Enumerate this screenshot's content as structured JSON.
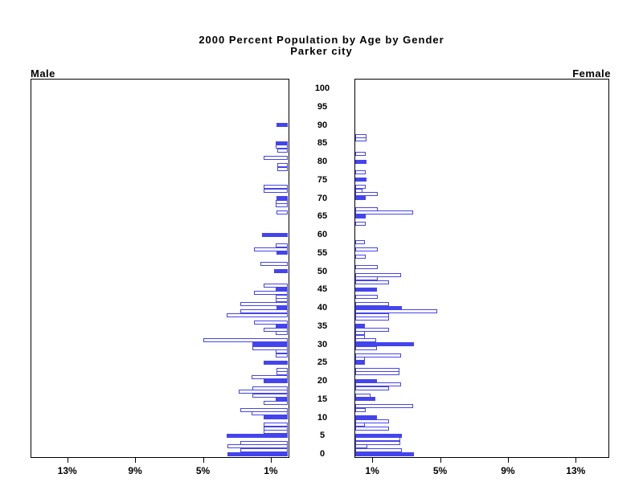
{
  "chart_data": {
    "type": "bar",
    "variant": "population-pyramid",
    "title": "2000 Percent Population by Age by Gender",
    "subtitle": "Parker city",
    "left_panel_label": "Male",
    "right_panel_label": "Female",
    "age_axis_labels": [
      "0",
      "5",
      "10",
      "15",
      "20",
      "25",
      "30",
      "35",
      "40",
      "45",
      "50",
      "55",
      "60",
      "65",
      "70",
      "75",
      "80",
      "85",
      "90",
      "95",
      "100"
    ],
    "x_axis": {
      "left_tick_labels": [
        "13%",
        "9%",
        "5%",
        "1%"
      ],
      "left_tick_values": [
        13,
        9,
        5,
        1
      ],
      "right_tick_labels": [
        "1%",
        "5%",
        "9%",
        "13%"
      ],
      "right_tick_values": [
        1,
        5,
        9,
        13
      ],
      "max_pct": 15.2
    },
    "legend_note": "solid bars mark ages divisible by 5",
    "colors": {
      "bar": "#4444ee",
      "axis": "#000000",
      "background": "#ffffff"
    },
    "series": [
      {
        "name": "Male",
        "points": [
          [
            90,
            0.65
          ],
          [
            85,
            0.7
          ],
          [
            84,
            0.7
          ],
          [
            83,
            0.6
          ],
          [
            81,
            1.4
          ],
          [
            79,
            0.6
          ],
          [
            78,
            0.6
          ],
          [
            73,
            1.4
          ],
          [
            72,
            1.4
          ],
          [
            70,
            0.65
          ],
          [
            69,
            0.7
          ],
          [
            68,
            0.7
          ],
          [
            66,
            0.65
          ],
          [
            60,
            1.5
          ],
          [
            57,
            0.7
          ],
          [
            56,
            2.0
          ],
          [
            55,
            0.65
          ],
          [
            52,
            1.6
          ],
          [
            50,
            0.8
          ],
          [
            46,
            1.4
          ],
          [
            45,
            0.7
          ],
          [
            44,
            2.0
          ],
          [
            43,
            0.7
          ],
          [
            42,
            0.7
          ],
          [
            41,
            2.8
          ],
          [
            40,
            0.65
          ],
          [
            39,
            2.8
          ],
          [
            38,
            3.6
          ],
          [
            36,
            2.0
          ],
          [
            35,
            0.7
          ],
          [
            34,
            1.4
          ],
          [
            33,
            0.7
          ],
          [
            31,
            5.0
          ],
          [
            30,
            2.1
          ],
          [
            29,
            2.1
          ],
          [
            28,
            0.7
          ],
          [
            27,
            0.7
          ],
          [
            25,
            1.4
          ],
          [
            23,
            0.65
          ],
          [
            22,
            0.65
          ],
          [
            21,
            2.15
          ],
          [
            20,
            1.4
          ],
          [
            18,
            2.1
          ],
          [
            17,
            2.9
          ],
          [
            16,
            2.1
          ],
          [
            15,
            0.7
          ],
          [
            14,
            1.4
          ],
          [
            12,
            2.8
          ],
          [
            11,
            2.15
          ],
          [
            10,
            1.4
          ],
          [
            8,
            1.4
          ],
          [
            7,
            1.4
          ],
          [
            6,
            1.4
          ],
          [
            5,
            3.6
          ],
          [
            3,
            2.8
          ],
          [
            2,
            3.55
          ],
          [
            1,
            2.8
          ],
          [
            0,
            3.55
          ]
        ]
      },
      {
        "name": "Female",
        "points": [
          [
            87,
            0.65
          ],
          [
            86,
            0.65
          ],
          [
            82,
            0.6
          ],
          [
            80,
            0.65
          ],
          [
            77,
            0.6
          ],
          [
            75,
            0.65
          ],
          [
            73,
            0.6
          ],
          [
            72,
            0.45
          ],
          [
            71,
            1.35
          ],
          [
            70,
            0.6
          ],
          [
            67,
            1.35
          ],
          [
            66,
            3.4
          ],
          [
            65,
            0.6
          ],
          [
            63,
            0.6
          ],
          [
            58,
            0.55
          ],
          [
            56,
            1.35
          ],
          [
            54,
            0.6
          ],
          [
            51,
            1.35
          ],
          [
            49,
            2.7
          ],
          [
            48,
            1.35
          ],
          [
            47,
            2.0
          ],
          [
            45,
            1.3
          ],
          [
            43,
            1.35
          ],
          [
            41,
            2.0
          ],
          [
            40,
            2.75
          ],
          [
            39,
            4.85
          ],
          [
            38,
            2.0
          ],
          [
            37,
            2.0
          ],
          [
            35,
            0.55
          ],
          [
            34,
            2.0
          ],
          [
            33,
            0.55
          ],
          [
            32,
            0.55
          ],
          [
            31,
            1.25
          ],
          [
            30,
            3.45
          ],
          [
            29,
            1.3
          ],
          [
            27,
            2.7
          ],
          [
            26,
            0.55
          ],
          [
            25,
            0.55
          ],
          [
            23,
            2.6
          ],
          [
            22,
            2.6
          ],
          [
            20,
            1.3
          ],
          [
            19,
            2.7
          ],
          [
            18,
            2.0
          ],
          [
            16,
            0.9
          ],
          [
            15,
            1.2
          ],
          [
            13,
            3.4
          ],
          [
            12,
            0.6
          ],
          [
            10,
            1.3
          ],
          [
            9,
            2.0
          ],
          [
            8,
            0.55
          ],
          [
            7,
            2.0
          ],
          [
            5,
            2.75
          ],
          [
            4,
            2.65
          ],
          [
            3,
            2.65
          ],
          [
            2,
            0.7
          ],
          [
            1,
            2.75
          ],
          [
            0,
            3.45
          ]
        ]
      }
    ]
  }
}
